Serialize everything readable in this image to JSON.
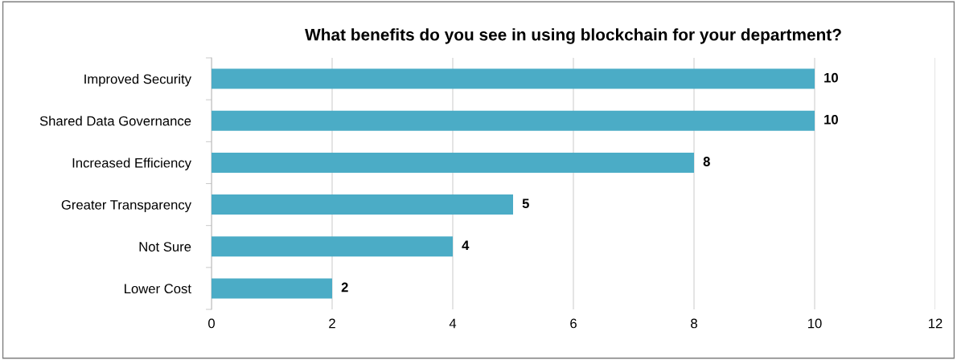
{
  "chart_data": {
    "type": "bar",
    "orientation": "horizontal",
    "title": "What benefits do you see in using blockchain for your department?",
    "categories": [
      "Improved Security",
      "Shared Data Governance",
      "Increased Efficiency",
      "Greater Transparency",
      "Not Sure",
      "Lower Cost"
    ],
    "values": [
      10,
      10,
      8,
      5,
      4,
      2
    ],
    "color": "#4bacc6",
    "xlim": [
      0,
      12
    ],
    "xticks": [
      0,
      2,
      4,
      6,
      8,
      10,
      12
    ],
    "grid": "x",
    "data_labels": true
  }
}
